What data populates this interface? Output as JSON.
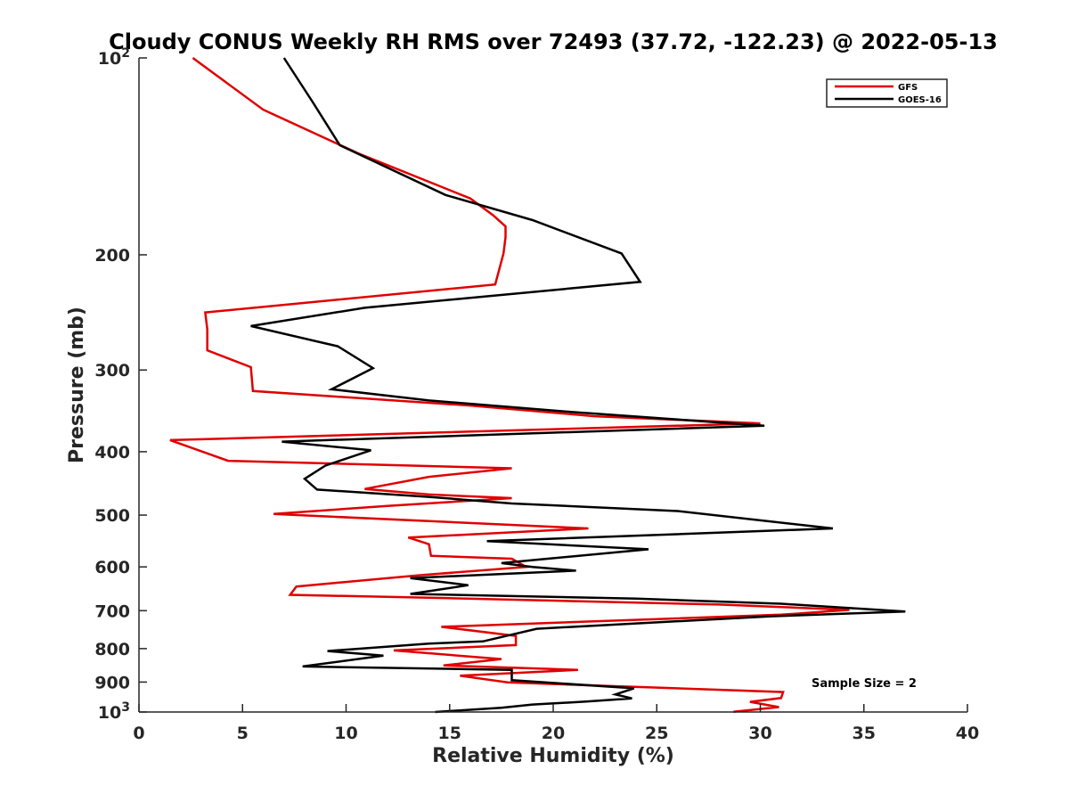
{
  "chart_data": {
    "type": "line",
    "title": "Cloudy CONUS Weekly RH RMS over 72493 (37.72, -122.23) @ 2022-05-13",
    "xlabel": "Relative Humidity (%)",
    "ylabel": "Pressure (mb)",
    "xlim": [
      0,
      40
    ],
    "ylim": [
      100,
      1000
    ],
    "y_scale": "log",
    "y_reversed": true,
    "grid": false,
    "legend_position": "top-right",
    "x_ticks": [
      0,
      5,
      10,
      15,
      20,
      25,
      30,
      35,
      40
    ],
    "x_tick_labels": [
      "0",
      "5",
      "10",
      "15",
      "20",
      "25",
      "30",
      "35",
      "40"
    ],
    "y_ticks": [
      100,
      200,
      300,
      400,
      500,
      600,
      700,
      800,
      900,
      1000
    ],
    "y_tick_labels": [
      {
        "base": "10",
        "exp": "2"
      },
      {
        "base": "200",
        "exp": ""
      },
      {
        "base": "300",
        "exp": ""
      },
      {
        "base": "400",
        "exp": ""
      },
      {
        "base": "500",
        "exp": ""
      },
      {
        "base": "600",
        "exp": ""
      },
      {
        "base": "700",
        "exp": ""
      },
      {
        "base": "800",
        "exp": ""
      },
      {
        "base": "900",
        "exp": ""
      },
      {
        "base": "10",
        "exp": "3"
      }
    ],
    "series": [
      {
        "name": "GFS",
        "color": "#e00000",
        "points": [
          [
            2.6,
            100
          ],
          [
            6.0,
            120
          ],
          [
            10.6,
            140
          ],
          [
            16.0,
            164
          ],
          [
            17.1,
            174
          ],
          [
            17.7,
            181
          ],
          [
            17.7,
            188
          ],
          [
            17.6,
            199
          ],
          [
            17.2,
            222
          ],
          [
            3.2,
            245
          ],
          [
            3.3,
            260
          ],
          [
            3.3,
            280
          ],
          [
            5.4,
            297
          ],
          [
            5.5,
            323
          ],
          [
            16.0,
            340
          ],
          [
            22.0,
            353
          ],
          [
            30.0,
            362
          ],
          [
            1.5,
            384
          ],
          [
            4.3,
            413
          ],
          [
            18.0,
            424
          ],
          [
            14.0,
            437
          ],
          [
            10.9,
            456
          ],
          [
            14.0,
            465
          ],
          [
            18.0,
            471
          ],
          [
            12.0,
            484
          ],
          [
            6.5,
            498
          ],
          [
            21.7,
            524
          ],
          [
            13.0,
            541
          ],
          [
            14.0,
            554
          ],
          [
            14.1,
            577
          ],
          [
            18.0,
            583
          ],
          [
            18.7,
            600
          ],
          [
            13.5,
            618
          ],
          [
            7.6,
            643
          ],
          [
            7.3,
            662
          ],
          [
            15.0,
            670
          ],
          [
            28.0,
            685
          ],
          [
            34.3,
            698
          ],
          [
            31.0,
            710
          ],
          [
            14.6,
            741
          ],
          [
            18.2,
            765
          ],
          [
            18.2,
            790
          ],
          [
            12.3,
            805
          ],
          [
            17.5,
            830
          ],
          [
            14.7,
            849
          ],
          [
            21.2,
            862
          ],
          [
            15.5,
            880
          ],
          [
            17.8,
            901
          ],
          [
            31.1,
            932
          ],
          [
            31.0,
            952
          ],
          [
            29.5,
            965
          ],
          [
            30.9,
            983
          ],
          [
            28.7,
            999
          ]
        ]
      },
      {
        "name": "GOES-16",
        "color": "#000000",
        "points": [
          [
            7.0,
            100
          ],
          [
            8.4,
            117
          ],
          [
            9.7,
            136
          ],
          [
            14.8,
            162
          ],
          [
            19.0,
            177
          ],
          [
            23.3,
            199
          ],
          [
            24.2,
            220
          ],
          [
            10.9,
            241
          ],
          [
            5.4,
            257
          ],
          [
            9.6,
            276
          ],
          [
            11.3,
            298
          ],
          [
            9.3,
            321
          ],
          [
            14.0,
            334
          ],
          [
            21.0,
            348
          ],
          [
            30.2,
            365
          ],
          [
            6.9,
            386
          ],
          [
            11.2,
            398
          ],
          [
            9.0,
            420
          ],
          [
            8.0,
            440
          ],
          [
            8.6,
            457
          ],
          [
            14.0,
            469
          ],
          [
            18.0,
            480
          ],
          [
            26.0,
            493
          ],
          [
            33.5,
            524
          ],
          [
            16.8,
            548
          ],
          [
            24.6,
            564
          ],
          [
            17.5,
            592
          ],
          [
            19.0,
            600
          ],
          [
            21.1,
            608
          ],
          [
            13.1,
            624
          ],
          [
            15.9,
            640
          ],
          [
            13.1,
            660
          ],
          [
            24.0,
            671
          ],
          [
            31.0,
            683
          ],
          [
            37.0,
            702
          ],
          [
            30.5,
            714
          ],
          [
            19.2,
            746
          ],
          [
            16.6,
            780
          ],
          [
            14.0,
            786
          ],
          [
            9.1,
            807
          ],
          [
            11.8,
            820
          ],
          [
            7.9,
            852
          ],
          [
            18.0,
            862
          ],
          [
            18.0,
            894
          ],
          [
            23.9,
            920
          ],
          [
            23.0,
            940
          ],
          [
            23.8,
            953
          ],
          [
            21.6,
            964
          ],
          [
            19.0,
            974
          ],
          [
            17.5,
            985
          ],
          [
            14.3,
            1000
          ]
        ]
      }
    ],
    "annotation": "Sample Size = 2"
  }
}
